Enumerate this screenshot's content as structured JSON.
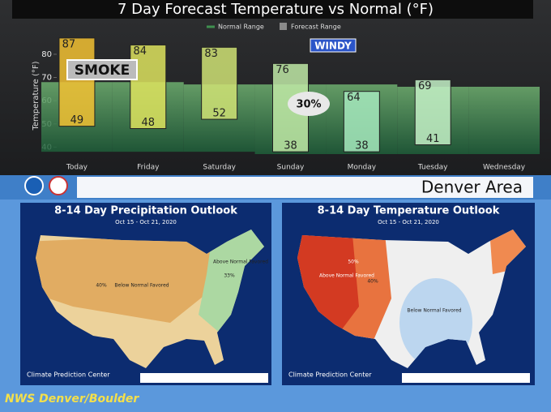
{
  "chart_data": {
    "type": "range-bar",
    "title": "7 Day Forecast Temperature vs Normal (°F)",
    "y_label": "Temperature (°F)",
    "categories": [
      "Today",
      "Friday",
      "Saturday",
      "Sunday",
      "Monday",
      "Tuesday",
      "Wednesday"
    ],
    "series": [
      {
        "name": "Normal Range",
        "color": "#3f8f4f",
        "low": [
          38,
          38,
          38,
          37,
          37,
          37,
          37
        ],
        "high": [
          68,
          68,
          67,
          67,
          67,
          66,
          66
        ]
      },
      {
        "name": "Forecast Range",
        "color": "#8a8a8a",
        "low": [
          49,
          48,
          52,
          38,
          38,
          41,
          null
        ],
        "high": [
          87,
          84,
          83,
          76,
          64,
          69,
          null
        ],
        "colors": [
          "#f2c132",
          "#dde35e",
          "#cfe274",
          "#bfe9a6",
          "#a6e9bd",
          "#c3f0c6",
          null
        ]
      }
    ],
    "ylim": [
      37,
      88
    ],
    "yticks": [
      40,
      50,
      60,
      70,
      80
    ],
    "annotations": [
      "SMOKE",
      "WINDY",
      "30%"
    ]
  },
  "region": "Denver Area",
  "maps": [
    {
      "title": "8-14 Day Precipitation Outlook",
      "dates": "Oct 15 - Oct 21, 2020",
      "labels": [
        "Below Normal Favored",
        "Above Normal Favored",
        "40%",
        "33%"
      ],
      "credit": "Climate Prediction Center"
    },
    {
      "title": "8-14 Day Temperature Outlook",
      "dates": "Oct 15 - Oct 21, 2020",
      "labels": [
        "Above Normal Favored",
        "Below Normal Favored",
        "50%",
        "40%"
      ],
      "credit": "Climate Prediction Center"
    }
  ],
  "footer": "NWS Denver/Boulder"
}
